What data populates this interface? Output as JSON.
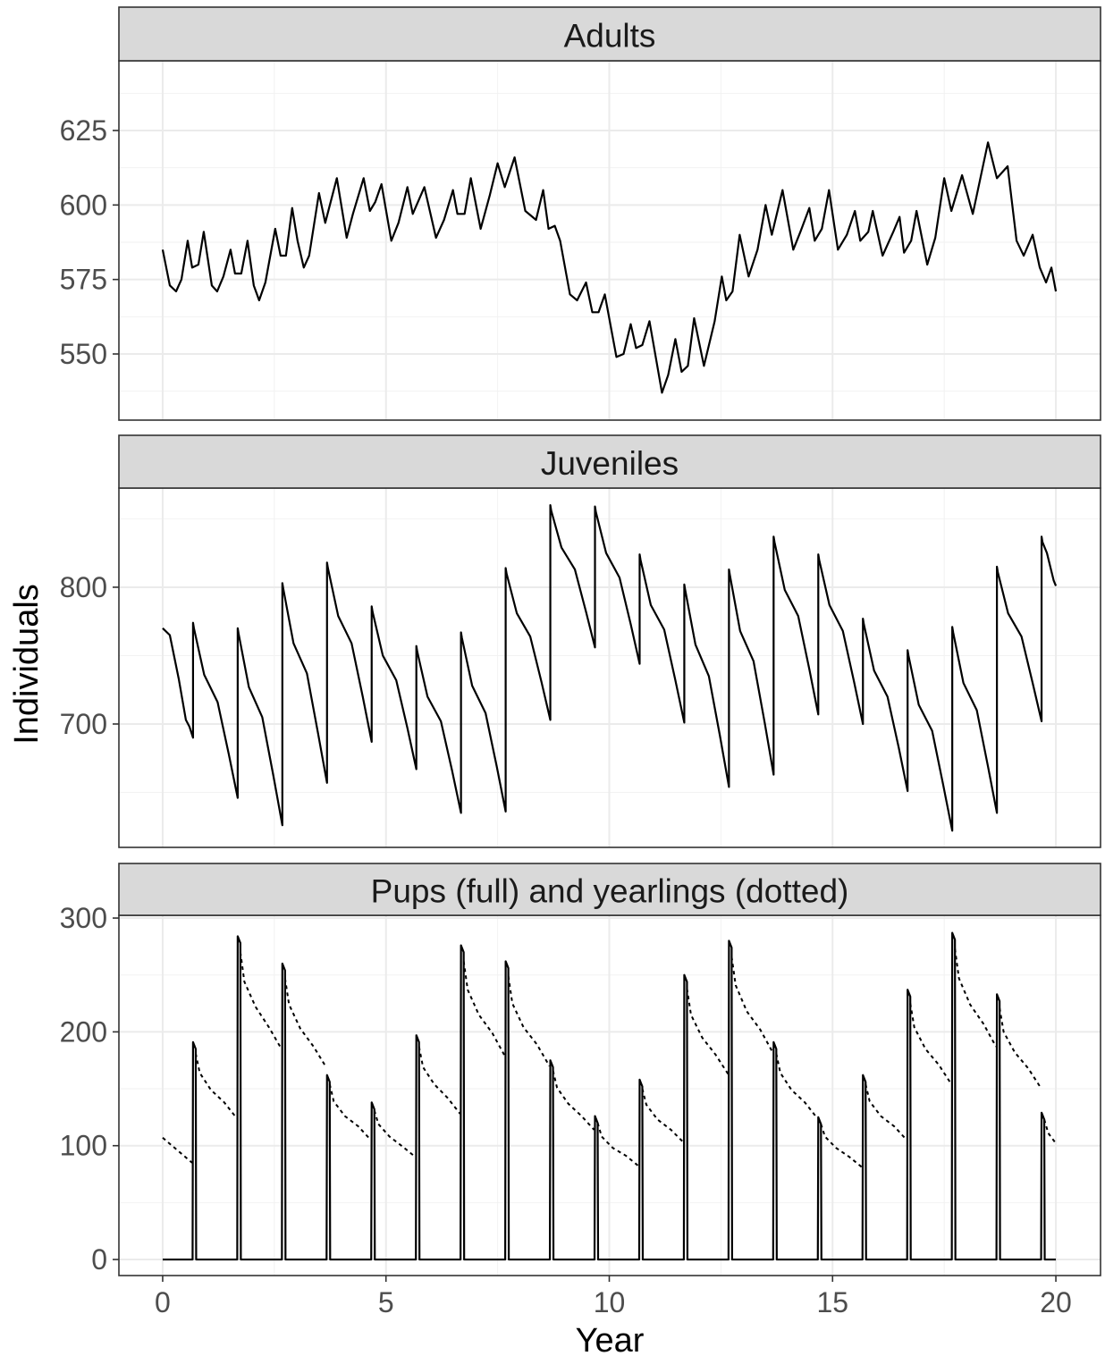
{
  "chart_data": [
    {
      "type": "line",
      "title": "Adults",
      "xlim": [
        -0.98,
        21.0
      ],
      "xticks": [
        0,
        5,
        10,
        15,
        20
      ],
      "ylim": [
        527.8,
        648.4
      ],
      "yticks": [
        550,
        575,
        600,
        625
      ],
      "grid": true,
      "series": [
        {
          "color": "#000000",
          "linetype": "solid",
          "x": [
            0,
            0.16,
            0.3,
            0.42,
            0.56,
            0.66,
            0.8,
            0.92,
            1.1,
            1.22,
            1.36,
            1.52,
            1.62,
            1.76,
            1.9,
            2.04,
            2.16,
            2.3,
            2.52,
            2.64,
            2.76,
            2.9,
            3.02,
            3.16,
            3.28,
            3.5,
            3.64,
            3.9,
            4.12,
            4.26,
            4.5,
            4.64,
            4.76,
            4.9,
            5.12,
            5.28,
            5.48,
            5.6,
            5.86,
            6.12,
            6.3,
            6.5,
            6.6,
            6.76,
            6.9,
            7.12,
            7.32,
            7.5,
            7.66,
            7.88,
            8.12,
            8.36,
            8.52,
            8.64,
            8.78,
            8.9,
            9.12,
            9.28,
            9.48,
            9.62,
            9.76,
            9.9,
            10.16,
            10.32,
            10.48,
            10.6,
            10.74,
            10.9,
            11.18,
            11.32,
            11.48,
            11.62,
            11.76,
            11.9,
            12.12,
            12.36,
            12.52,
            12.62,
            12.76,
            12.92,
            13.12,
            13.32,
            13.5,
            13.64,
            13.88,
            14.12,
            14.28,
            14.48,
            14.6,
            14.76,
            14.92,
            15.12,
            15.32,
            15.5,
            15.62,
            15.8,
            15.9,
            16.12,
            16.36,
            16.5,
            16.6,
            16.76,
            16.88,
            17.12,
            17.3,
            17.5,
            17.66,
            17.9,
            18.14,
            18.48,
            18.68,
            18.92,
            19.12,
            19.28,
            19.48,
            19.64,
            19.78,
            19.9,
            20
          ],
          "values": [
            585,
            573,
            571,
            575,
            588,
            579,
            580,
            591,
            573,
            571,
            576,
            585,
            577,
            577,
            588,
            573,
            568,
            574,
            592,
            583,
            583,
            599,
            588,
            579,
            583,
            604,
            594,
            609,
            589,
            597,
            609,
            598,
            601,
            607,
            588,
            594,
            606,
            597,
            606,
            589,
            595,
            605,
            597,
            597,
            609,
            592,
            603,
            614,
            606,
            616,
            598,
            595,
            605,
            592,
            593,
            588,
            570,
            568,
            574,
            564,
            564,
            570,
            549,
            550,
            560,
            552,
            553,
            561,
            537,
            543,
            555,
            544,
            546,
            562,
            546,
            561,
            576,
            568,
            571,
            590,
            576,
            585,
            600,
            590,
            605,
            585,
            591,
            599,
            588,
            592,
            605,
            585,
            590,
            598,
            588,
            591,
            598,
            583,
            591,
            596,
            584,
            588,
            598,
            580,
            589,
            609,
            598,
            610,
            597,
            621,
            609,
            613,
            588,
            583,
            590,
            579,
            574,
            579,
            571
          ]
        }
      ]
    },
    {
      "type": "line",
      "title": "Juveniles",
      "ylabel": "Individuals",
      "xlim": [
        -0.98,
        21.0
      ],
      "xticks": [
        0,
        5,
        10,
        15,
        20
      ],
      "ylim": [
        609.8,
        872.5
      ],
      "yticks": [
        700,
        800
      ],
      "grid": true,
      "series": [
        {
          "color": "#000000",
          "linetype": "solid",
          "x": [
            0,
            0.16,
            0.36,
            0.52,
            0.6,
            0.68,
            0.68,
            0.7,
            0.93,
            1.23,
            1.48,
            1.68,
            1.68,
            1.7,
            1.93,
            2.23,
            2.48,
            2.68,
            2.68,
            2.7,
            2.93,
            3.23,
            3.48,
            3.68,
            3.68,
            3.7,
            3.93,
            4.23,
            4.48,
            4.68,
            4.68,
            4.7,
            4.93,
            5.23,
            5.48,
            5.68,
            5.68,
            5.7,
            5.93,
            6.23,
            6.48,
            6.68,
            6.68,
            6.7,
            6.93,
            7.23,
            7.48,
            7.68,
            7.68,
            7.7,
            7.93,
            8.23,
            8.48,
            8.68,
            8.68,
            8.7,
            8.93,
            9.23,
            9.48,
            9.68,
            9.68,
            9.7,
            9.93,
            10.23,
            10.48,
            10.68,
            10.68,
            10.7,
            10.93,
            11.23,
            11.48,
            11.68,
            11.68,
            11.7,
            11.93,
            12.23,
            12.48,
            12.68,
            12.68,
            12.7,
            12.93,
            13.23,
            13.48,
            13.68,
            13.68,
            13.7,
            13.93,
            14.23,
            14.48,
            14.68,
            14.68,
            14.7,
            14.93,
            15.23,
            15.48,
            15.68,
            15.68,
            15.7,
            15.93,
            16.23,
            16.48,
            16.68,
            16.68,
            16.7,
            16.93,
            17.23,
            17.48,
            17.68,
            17.68,
            17.7,
            17.93,
            18.23,
            18.48,
            18.68,
            18.68,
            18.7,
            18.93,
            19.23,
            19.48,
            19.68,
            19.68,
            19.7,
            19.8,
            19.95,
            20
          ],
          "values": [
            770,
            765,
            733,
            703,
            698,
            690,
            774,
            770,
            736,
            716,
            678,
            646,
            770,
            766,
            727,
            705,
            662,
            626,
            803,
            799,
            759,
            737,
            693,
            657,
            818,
            814,
            779,
            759,
            720,
            687,
            786,
            782,
            750,
            732,
            697,
            667,
            757,
            753,
            720,
            702,
            666,
            635,
            767,
            763,
            728,
            708,
            669,
            636,
            814,
            810,
            781,
            764,
            731,
            703,
            860,
            856,
            829,
            813,
            782,
            756,
            859,
            855,
            825,
            807,
            773,
            744,
            824,
            820,
            787,
            769,
            732,
            701,
            802,
            798,
            758,
            735,
            691,
            654,
            813,
            809,
            768,
            746,
            701,
            663,
            837,
            833,
            798,
            779,
            740,
            707,
            824,
            820,
            787,
            768,
            731,
            700,
            777,
            773,
            739,
            720,
            683,
            651,
            754,
            750,
            714,
            695,
            655,
            622,
            771,
            767,
            730,
            710,
            669,
            635,
            815,
            811,
            781,
            764,
            730,
            702,
            837,
            833,
            825,
            805,
            801
          ]
        }
      ]
    },
    {
      "type": "line",
      "title": "Pups (full) and yearlings (dotted)",
      "xlabel": "Year",
      "xlim": [
        -0.98,
        21.0
      ],
      "xticks": [
        0,
        5,
        10,
        15,
        20
      ],
      "ylim": [
        -14.1,
        302.4
      ],
      "yticks": [
        0,
        100,
        200,
        300
      ],
      "grid": true,
      "series": [
        {
          "color": "#000000",
          "linetype": "solid",
          "x": [
            0,
            0.67,
            0.68,
            0.74,
            0.75,
            1.67,
            1.68,
            1.74,
            1.75,
            2.67,
            2.68,
            2.74,
            2.75,
            3.67,
            3.68,
            3.74,
            3.75,
            4.67,
            4.68,
            4.74,
            4.75,
            5.67,
            5.68,
            5.74,
            5.75,
            6.67,
            6.68,
            6.74,
            6.75,
            7.67,
            7.68,
            7.74,
            7.75,
            8.67,
            8.68,
            8.74,
            8.75,
            9.67,
            9.68,
            9.74,
            9.75,
            10.67,
            10.68,
            10.74,
            10.75,
            11.67,
            11.68,
            11.74,
            11.75,
            12.67,
            12.68,
            12.74,
            12.75,
            13.67,
            13.68,
            13.74,
            13.75,
            14.67,
            14.68,
            14.74,
            14.75,
            15.67,
            15.68,
            15.74,
            15.75,
            16.67,
            16.68,
            16.74,
            16.75,
            17.67,
            17.68,
            17.74,
            17.75,
            18.67,
            18.68,
            18.74,
            18.75,
            19.67,
            19.68,
            19.74,
            19.75,
            20
          ],
          "values": [
            0,
            0,
            191,
            185,
            0,
            0,
            284,
            278,
            0,
            0,
            260,
            254,
            0,
            0,
            162,
            156,
            0,
            0,
            138,
            132,
            0,
            0,
            197,
            191,
            0,
            0,
            276,
            270,
            0,
            0,
            262,
            256,
            0,
            0,
            175,
            169,
            0,
            0,
            126,
            120,
            0,
            0,
            158,
            152,
            0,
            0,
            250,
            244,
            0,
            0,
            280,
            274,
            0,
            0,
            191,
            185,
            0,
            0,
            125,
            119,
            0,
            0,
            162,
            156,
            0,
            0,
            237,
            231,
            0,
            0,
            287,
            281,
            0,
            0,
            233,
            227,
            0,
            0,
            129,
            123,
            0,
            0
          ]
        },
        {
          "color": "#000000",
          "linetype": "dotted",
          "x": [
            0,
            0.3,
            0.66,
            0.67,
            0.74,
            0.83,
            1.08,
            1.38,
            1.66,
            1.67,
            1.74,
            1.83,
            2.08,
            2.38,
            2.66,
            2.67,
            2.74,
            2.83,
            3.08,
            3.38,
            3.66,
            3.67,
            3.74,
            3.83,
            4.08,
            4.38,
            4.66,
            4.67,
            4.74,
            4.83,
            5.08,
            5.38,
            5.66,
            5.67,
            5.74,
            5.83,
            6.08,
            6.38,
            6.66,
            6.67,
            6.74,
            6.83,
            7.08,
            7.38,
            7.66,
            7.67,
            7.74,
            7.83,
            8.08,
            8.38,
            8.66,
            8.67,
            8.74,
            8.83,
            9.08,
            9.38,
            9.66,
            9.67,
            9.74,
            9.83,
            10.08,
            10.38,
            10.66,
            10.67,
            10.74,
            10.83,
            11.08,
            11.38,
            11.66,
            11.67,
            11.74,
            11.83,
            12.08,
            12.38,
            12.66,
            12.67,
            12.74,
            12.83,
            13.08,
            13.38,
            13.66,
            13.67,
            13.74,
            13.83,
            14.08,
            14.38,
            14.66,
            14.67,
            14.74,
            14.83,
            15.08,
            15.38,
            15.66,
            15.67,
            15.74,
            15.83,
            16.08,
            16.38,
            16.66,
            16.67,
            16.74,
            16.83,
            17.08,
            17.38,
            17.66,
            17.67,
            17.74,
            17.83,
            18.08,
            18.38,
            18.66,
            18.67,
            18.74,
            18.83,
            19.08,
            19.38,
            19.66,
            19.67,
            19.74,
            19.83,
            20
          ],
          "values": [
            107,
            97,
            85,
            null,
            181,
            164,
            149,
            138,
            124,
            null,
            270,
            244,
            222,
            204,
            185,
            null,
            247,
            224,
            203,
            187,
            169,
            null,
            154,
            139,
            126,
            117,
            105,
            null,
            131,
            119,
            108,
            99,
            90,
            null,
            187,
            169,
            154,
            142,
            128,
            null,
            262,
            237,
            215,
            199,
            179,
            null,
            249,
            225,
            204,
            189,
            170,
            null,
            166,
            151,
            137,
            126,
            114,
            null,
            120,
            108,
            98,
            91,
            82,
            null,
            150,
            136,
            123,
            114,
            103,
            null,
            238,
            215,
            195,
            180,
            163,
            null,
            266,
            241,
            218,
            202,
            182,
            null,
            181,
            164,
            149,
            138,
            124,
            null,
            119,
            108,
            98,
            90,
            81,
            null,
            154,
            139,
            126,
            117,
            105,
            null,
            225,
            204,
            185,
            171,
            154,
            null,
            273,
            247,
            224,
            207,
            187,
            null,
            221,
            200,
            182,
            168,
            151,
            null,
            123,
            111,
            102
          ]
        }
      ]
    }
  ]
}
